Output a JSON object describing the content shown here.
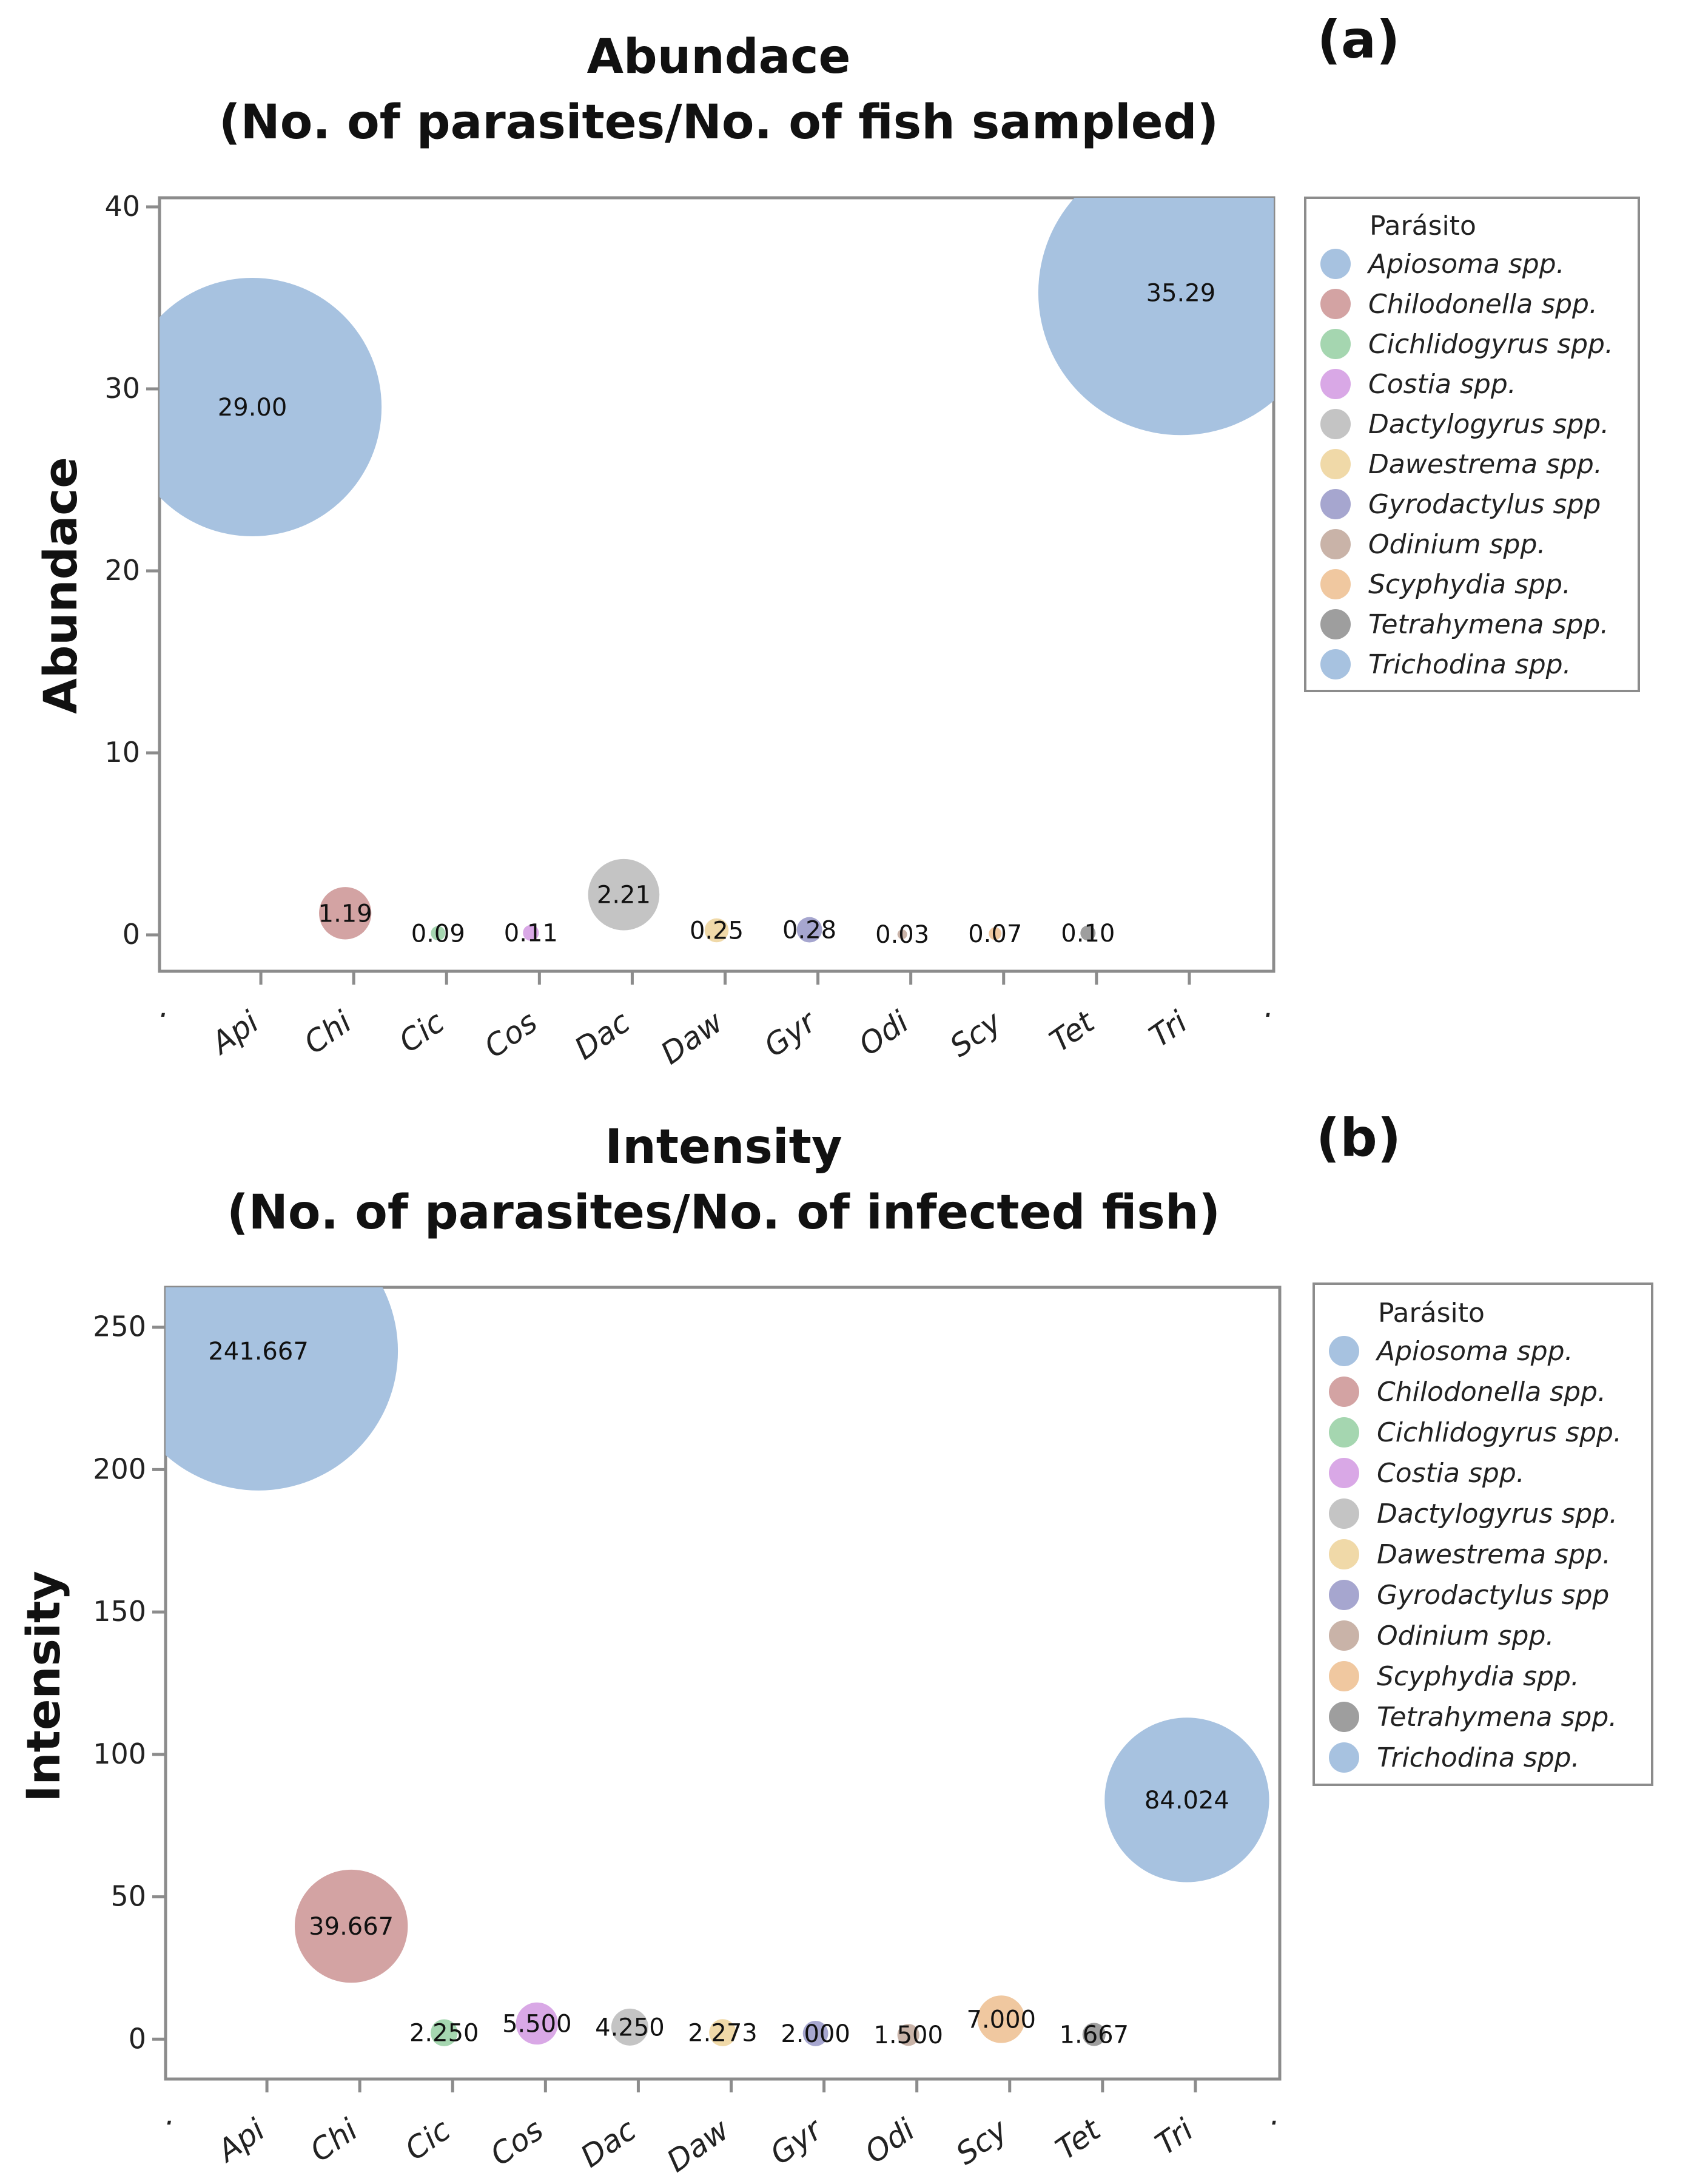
{
  "chart_data": [
    {
      "type": "bubble",
      "panel_label": "(a)",
      "title": "Abundace",
      "subtitle": "(No. of parasites/No. of fish sampled)",
      "xlabel": "",
      "ylabel": "Abundace",
      "ylim": [
        -2,
        40.5
      ],
      "yticks": [
        0,
        10,
        20,
        30,
        40
      ],
      "x_end_labels": [
        ".",
        "."
      ],
      "categories": [
        "Api",
        "Chi",
        "Cic",
        "Cos",
        "Dac",
        "Daw",
        "Gyr",
        "Odi",
        "Scy",
        "Tet",
        "Tri"
      ],
      "values": [
        29.0,
        1.19,
        0.09,
        0.11,
        2.21,
        0.25,
        0.28,
        0.03,
        0.07,
        0.1,
        35.29
      ],
      "value_labels": [
        "29.00",
        "1.19",
        "0.09",
        "0.11",
        "2.21",
        "0.25",
        "0.28",
        "0.03",
        "0.07",
        "0.10",
        "35.29"
      ],
      "grid": false,
      "legend": {
        "title": "Parásito",
        "position": "right",
        "entries": [
          "Apiosoma spp.",
          "Chilodonella spp.",
          "Cichlidogyrus spp.",
          "Costia spp.",
          "Dactylogyrus spp.",
          "Dawestrema spp.",
          "Gyrodactylus spp",
          "Odinium spp.",
          "Scyphydia spp.",
          "Tetrahymena spp.",
          "Trichodina spp."
        ]
      }
    },
    {
      "type": "bubble",
      "panel_label": "(b)",
      "title": "Intensity",
      "subtitle": "(No. of parasites/No. of infected fish)",
      "xlabel": "",
      "ylabel": "Intensity",
      "ylim": [
        -14,
        264
      ],
      "yticks": [
        0,
        50,
        100,
        150,
        200,
        250
      ],
      "x_end_labels": [
        ".",
        "."
      ],
      "categories": [
        "Api",
        "Chi",
        "Cic",
        "Cos",
        "Dac",
        "Daw",
        "Gyr",
        "Odi",
        "Scy",
        "Tet",
        "Tri"
      ],
      "values": [
        241.667,
        39.667,
        2.25,
        5.5,
        4.25,
        2.273,
        2.0,
        1.5,
        7.0,
        1.667,
        84.024
      ],
      "value_labels": [
        "241.667",
        "39.667",
        "2.250",
        "5.500",
        "4.250",
        "2.273",
        "2.000",
        "1.500",
        "7.000",
        "1.667",
        "84.024"
      ],
      "grid": false,
      "legend": {
        "title": "Parásito",
        "position": "right",
        "entries": [
          "Apiosoma spp.",
          "Chilodonella spp.",
          "Cichlidogyrus spp.",
          "Costia spp.",
          "Dactylogyrus spp.",
          "Dawestrema spp.",
          "Gyrodactylus spp",
          "Odinium spp.",
          "Scyphydia spp.",
          "Tetrahymena spp.",
          "Trichodina spp."
        ]
      }
    }
  ],
  "colors": {
    "series": [
      "#a7c2e0",
      "#d3a3a3",
      "#a5d6b0",
      "#d9a8e6",
      "#c4c4c4",
      "#f0d9a8",
      "#a6a6cf",
      "#c9b3a8",
      "#f0c8a0",
      "#9e9e9e",
      "#a7c2e0"
    ],
    "axis": "#8c8c8c",
    "text": "#111111"
  }
}
